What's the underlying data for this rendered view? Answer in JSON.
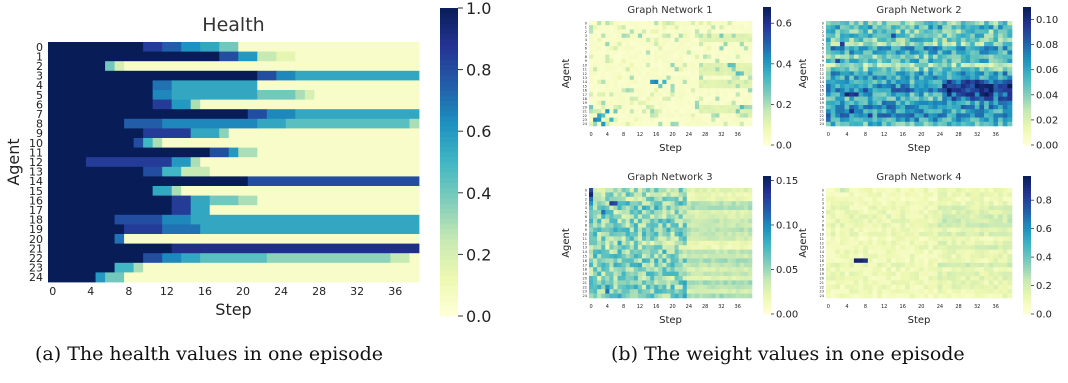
{
  "captions": {
    "a": "(a) The health values in one episode",
    "b": "(b) The weight values in one episode"
  },
  "chart_data": [
    {
      "type": "heatmap",
      "title": "Health",
      "xlabel": "Step",
      "ylabel": "Agent",
      "colormap": "YlGnBu",
      "xlim": [
        0,
        39
      ],
      "x_ticks": [
        "0",
        "4",
        "8",
        "12",
        "16",
        "20",
        "24",
        "28",
        "32",
        "36"
      ],
      "y_ticks": [
        "0",
        "1",
        "2",
        "3",
        "4",
        "5",
        "6",
        "7",
        "8",
        "9",
        "10",
        "11",
        "12",
        "13",
        "14",
        "15",
        "16",
        "17",
        "18",
        "19",
        "20",
        "21",
        "22",
        "23",
        "24"
      ],
      "clim": [
        0.0,
        1.0
      ],
      "colorbar_ticks": [
        "0.0",
        "0.2",
        "0.4",
        "0.6",
        "0.8",
        "1.0"
      ],
      "rows": [
        [
          [
            0,
            10,
            1.0
          ],
          [
            10,
            12,
            0.85
          ],
          [
            12,
            14,
            0.75
          ],
          [
            14,
            16,
            0.62
          ],
          [
            16,
            18,
            0.55
          ],
          [
            18,
            20,
            0.4
          ],
          [
            20,
            39,
            0.05
          ]
        ],
        [
          [
            0,
            18,
            1.0
          ],
          [
            18,
            20,
            0.8
          ],
          [
            20,
            22,
            0.6
          ],
          [
            22,
            24,
            0.25
          ],
          [
            24,
            26,
            0.15
          ],
          [
            26,
            39,
            0.05
          ]
        ],
        [
          [
            0,
            6,
            1.0
          ],
          [
            6,
            7,
            0.4
          ],
          [
            7,
            8,
            0.2
          ],
          [
            8,
            39,
            0.05
          ]
        ],
        [
          [
            0,
            22,
            1.0
          ],
          [
            22,
            24,
            0.8
          ],
          [
            24,
            26,
            0.65
          ],
          [
            26,
            39,
            0.55
          ]
        ],
        [
          [
            0,
            11,
            1.0
          ],
          [
            11,
            13,
            0.7
          ],
          [
            13,
            22,
            0.55
          ],
          [
            22,
            39,
            0.05
          ]
        ],
        [
          [
            0,
            11,
            1.0
          ],
          [
            11,
            13,
            0.65
          ],
          [
            13,
            22,
            0.55
          ],
          [
            22,
            26,
            0.4
          ],
          [
            26,
            27,
            0.3
          ],
          [
            27,
            28,
            0.2
          ],
          [
            28,
            39,
            0.05
          ]
        ],
        [
          [
            0,
            11,
            1.0
          ],
          [
            11,
            13,
            0.85
          ],
          [
            13,
            15,
            0.6
          ],
          [
            15,
            16,
            0.3
          ],
          [
            16,
            39,
            0.05
          ]
        ],
        [
          [
            0,
            21,
            1.0
          ],
          [
            21,
            23,
            0.8
          ],
          [
            23,
            26,
            0.65
          ],
          [
            26,
            39,
            0.55
          ]
        ],
        [
          [
            0,
            8,
            1.0
          ],
          [
            8,
            12,
            0.75
          ],
          [
            12,
            22,
            0.65
          ],
          [
            22,
            25,
            0.55
          ],
          [
            25,
            38,
            0.45
          ],
          [
            38,
            39,
            0.3
          ]
        ],
        [
          [
            0,
            10,
            1.0
          ],
          [
            10,
            15,
            0.85
          ],
          [
            15,
            18,
            0.55
          ],
          [
            18,
            19,
            0.35
          ],
          [
            19,
            39,
            0.05
          ]
        ],
        [
          [
            0,
            9,
            1.0
          ],
          [
            9,
            10,
            0.8
          ],
          [
            10,
            11,
            0.5
          ],
          [
            11,
            12,
            0.3
          ],
          [
            12,
            39,
            0.05
          ]
        ],
        [
          [
            0,
            17,
            1.0
          ],
          [
            17,
            19,
            0.8
          ],
          [
            19,
            20,
            0.6
          ],
          [
            20,
            22,
            0.3
          ],
          [
            22,
            39,
            0.05
          ]
        ],
        [
          [
            0,
            4,
            1.0
          ],
          [
            4,
            13,
            0.85
          ],
          [
            13,
            15,
            0.6
          ],
          [
            15,
            16,
            0.3
          ],
          [
            16,
            39,
            0.05
          ]
        ],
        [
          [
            0,
            10,
            1.0
          ],
          [
            10,
            12,
            0.8
          ],
          [
            12,
            14,
            0.5
          ],
          [
            14,
            17,
            0.25
          ],
          [
            17,
            39,
            0.05
          ]
        ],
        [
          [
            0,
            21,
            1.0
          ],
          [
            21,
            39,
            0.8
          ]
        ],
        [
          [
            0,
            11,
            1.0
          ],
          [
            11,
            13,
            0.55
          ],
          [
            13,
            14,
            0.3
          ],
          [
            14,
            39,
            0.05
          ]
        ],
        [
          [
            0,
            13,
            1.0
          ],
          [
            13,
            15,
            0.85
          ],
          [
            15,
            17,
            0.55
          ],
          [
            17,
            20,
            0.4
          ],
          [
            20,
            22,
            0.3
          ],
          [
            22,
            39,
            0.05
          ]
        ],
        [
          [
            0,
            13,
            1.0
          ],
          [
            13,
            15,
            0.85
          ],
          [
            15,
            17,
            0.55
          ],
          [
            17,
            39,
            0.05
          ]
        ],
        [
          [
            0,
            7,
            1.0
          ],
          [
            7,
            12,
            0.8
          ],
          [
            12,
            15,
            0.65
          ],
          [
            15,
            39,
            0.55
          ]
        ],
        [
          [
            0,
            8,
            1.0
          ],
          [
            8,
            12,
            0.85
          ],
          [
            12,
            16,
            0.7
          ],
          [
            16,
            39,
            0.55
          ]
        ],
        [
          [
            0,
            7,
            1.0
          ],
          [
            7,
            8,
            0.7
          ],
          [
            8,
            39,
            0.05
          ]
        ],
        [
          [
            0,
            13,
            1.0
          ],
          [
            13,
            39,
            0.9
          ]
        ],
        [
          [
            0,
            10,
            1.0
          ],
          [
            10,
            12,
            0.8
          ],
          [
            12,
            14,
            0.65
          ],
          [
            14,
            16,
            0.55
          ],
          [
            16,
            23,
            0.45
          ],
          [
            23,
            36,
            0.35
          ],
          [
            36,
            38,
            0.25
          ],
          [
            38,
            39,
            0.05
          ]
        ],
        [
          [
            0,
            7,
            1.0
          ],
          [
            7,
            9,
            0.5
          ],
          [
            9,
            10,
            0.3
          ],
          [
            10,
            39,
            0.05
          ]
        ],
        [
          [
            0,
            5,
            1.0
          ],
          [
            5,
            6,
            0.6
          ],
          [
            6,
            8,
            0.4
          ],
          [
            8,
            39,
            0.05
          ]
        ]
      ]
    },
    {
      "type": "heatmap",
      "title": "Graph Network 1",
      "xlabel": "Step",
      "ylabel": "Agent",
      "colormap": "YlGnBu",
      "x_ticks": [
        "0",
        "4",
        "8",
        "12",
        "16",
        "20",
        "24",
        "28",
        "32",
        "36"
      ],
      "clim": [
        0.0,
        0.68
      ],
      "colorbar_ticks": [
        "0.0",
        "0.2",
        "0.4",
        "0.6"
      ],
      "noise_profile": "sparse",
      "hot_cells": [
        [
          14,
          15,
          0.6
        ],
        [
          14,
          16,
          0.65
        ],
        [
          14,
          18,
          0.5
        ],
        [
          15,
          17,
          0.4
        ],
        [
          21,
          4,
          0.6
        ],
        [
          22,
          2,
          0.55
        ],
        [
          22,
          3,
          0.45
        ],
        [
          23,
          1,
          0.65
        ],
        [
          23,
          2,
          0.6
        ],
        [
          23,
          5,
          0.5
        ],
        [
          24,
          3,
          0.6
        ],
        [
          20,
          0,
          0.4
        ],
        [
          21,
          6,
          0.4
        ]
      ]
    },
    {
      "type": "heatmap",
      "title": "Graph Network 2",
      "xlabel": "Step",
      "ylabel": "Agent",
      "colormap": "YlGnBu",
      "x_ticks": [
        "0",
        "4",
        "8",
        "12",
        "16",
        "20",
        "24",
        "28",
        "32",
        "36"
      ],
      "clim": [
        0.0,
        0.11
      ],
      "colorbar_ticks": [
        "0.00",
        "0.02",
        "0.04",
        "0.06",
        "0.08",
        "0.10"
      ],
      "noise_profile": "dense",
      "hot_cells": [
        [
          17,
          4,
          0.95
        ],
        [
          17,
          5,
          0.85
        ],
        [
          17,
          6,
          0.9
        ],
        [
          17,
          28,
          0.8
        ],
        [
          17,
          29,
          0.85
        ],
        [
          17,
          33,
          0.95
        ],
        [
          17,
          34,
          1.0
        ],
        [
          17,
          35,
          0.9
        ],
        [
          21,
          5,
          0.9
        ],
        [
          22,
          9,
          0.85
        ],
        [
          5,
          3,
          0.85
        ],
        [
          9,
          2,
          0.8
        ],
        [
          3,
          14,
          0.8
        ]
      ]
    },
    {
      "type": "heatmap",
      "title": "Graph Network 3",
      "xlabel": "Step",
      "ylabel": "Agent",
      "colormap": "YlGnBu",
      "x_ticks": [
        "0",
        "4",
        "8",
        "12",
        "16",
        "20",
        "24",
        "28",
        "32",
        "36"
      ],
      "clim": [
        0.0,
        0.155
      ],
      "colorbar_ticks": [
        "0.00",
        "0.05",
        "0.10",
        "0.15"
      ],
      "noise_profile": "medium",
      "hot_cells": [
        [
          0,
          0,
          0.8
        ],
        [
          1,
          0,
          0.95
        ],
        [
          2,
          0,
          0.7
        ],
        [
          3,
          0,
          0.6
        ],
        [
          3,
          5,
          0.85
        ],
        [
          3,
          6,
          0.8
        ],
        [
          5,
          3,
          0.7
        ],
        [
          22,
          4,
          0.6
        ],
        [
          23,
          4,
          0.7
        ],
        [
          12,
          7,
          0.55
        ]
      ]
    },
    {
      "type": "heatmap",
      "title": "Graph Network 4",
      "xlabel": "Step",
      "ylabel": "Agent",
      "colormap": "YlGnBu",
      "x_ticks": [
        "0",
        "4",
        "8",
        "12",
        "16",
        "20",
        "24",
        "28",
        "32",
        "36"
      ],
      "clim": [
        0.0,
        0.97
      ],
      "colorbar_ticks": [
        "0.0",
        "0.2",
        "0.4",
        "0.6",
        "0.8"
      ],
      "noise_profile": "faint",
      "hot_cells": [
        [
          16,
          6,
          0.95
        ],
        [
          16,
          7,
          0.95
        ],
        [
          16,
          8,
          0.9
        ],
        [
          0,
          3,
          0.25
        ],
        [
          0,
          4,
          0.2
        ]
      ]
    }
  ]
}
